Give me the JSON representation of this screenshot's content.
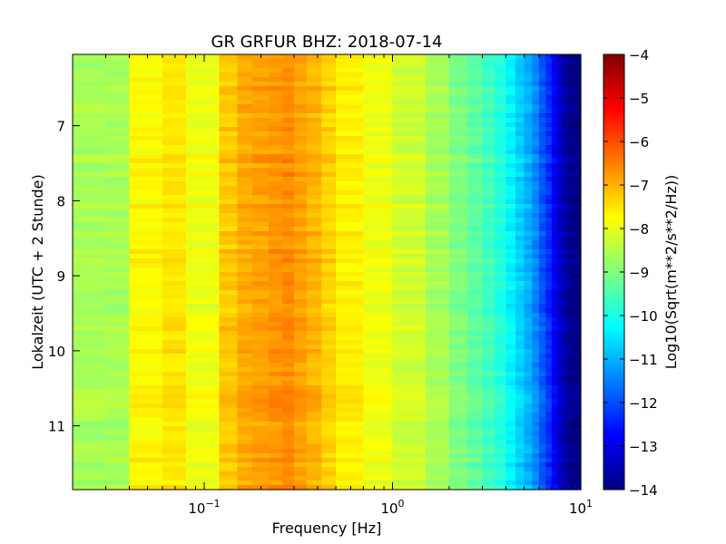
{
  "chart_data": {
    "type": "heatmap",
    "title": "GR GRFUR BHZ: 2018-07-14",
    "xlabel": "Frequency [Hz]",
    "ylabel": "Lokalzeit (UTC + 2 Stunde)",
    "x_scale": "log",
    "xlim": [
      0.02,
      10
    ],
    "ylim": [
      11.85,
      6.05
    ],
    "y_inverted": true,
    "x_ticks": [
      {
        "value": 0.1,
        "base": "10",
        "exp": "−1"
      },
      {
        "value": 1,
        "base": "10",
        "exp": "0"
      },
      {
        "value": 10,
        "base": "10",
        "exp": "1"
      }
    ],
    "y_ticks": [
      {
        "value": 7,
        "label": "7"
      },
      {
        "value": 8,
        "label": "8"
      },
      {
        "value": 9,
        "label": "9"
      },
      {
        "value": 10,
        "label": "10"
      },
      {
        "value": 11,
        "label": "11"
      }
    ],
    "colorbar": {
      "label": "Log10(Sqrt(m**2/s**2/Hz))",
      "colormap": "jet",
      "range": [
        -14,
        -4
      ],
      "ticks": [
        {
          "value": -4,
          "label": "−4"
        },
        {
          "value": -5,
          "label": "−5"
        },
        {
          "value": -6,
          "label": "−6"
        },
        {
          "value": -7,
          "label": "−7"
        },
        {
          "value": -8,
          "label": "−8"
        },
        {
          "value": -9,
          "label": "−9"
        },
        {
          "value": -10,
          "label": "−10"
        },
        {
          "value": -11,
          "label": "−11"
        },
        {
          "value": -12,
          "label": "−12"
        },
        {
          "value": -13,
          "label": "−13"
        },
        {
          "value": -14,
          "label": "−14"
        }
      ]
    },
    "frequency_bins_hz": [
      0.02,
      0.03,
      0.04,
      0.06,
      0.08,
      0.12,
      0.15,
      0.18,
      0.22,
      0.26,
      0.3,
      0.35,
      0.42,
      0.5,
      0.7,
      1.0,
      1.5,
      2.0,
      2.5,
      3.0,
      3.5,
      4.0,
      4.5,
      5.0,
      5.5,
      6.0,
      6.5,
      7.0,
      7.5,
      8.0,
      8.5,
      9.0,
      9.5,
      10.0
    ],
    "mean_spectrum_log10": [
      -8.6,
      -8.6,
      -7.7,
      -7.5,
      -7.9,
      -7.2,
      -6.9,
      -6.8,
      -6.7,
      -6.6,
      -6.8,
      -7.0,
      -7.3,
      -7.6,
      -7.9,
      -8.2,
      -8.6,
      -9.0,
      -9.3,
      -9.6,
      -9.9,
      -10.3,
      -10.7,
      -11.0,
      -11.4,
      -11.9,
      -12.3,
      -12.8,
      -13.3,
      -13.6,
      -13.8,
      -13.9,
      -14.0,
      -14.0
    ]
  }
}
